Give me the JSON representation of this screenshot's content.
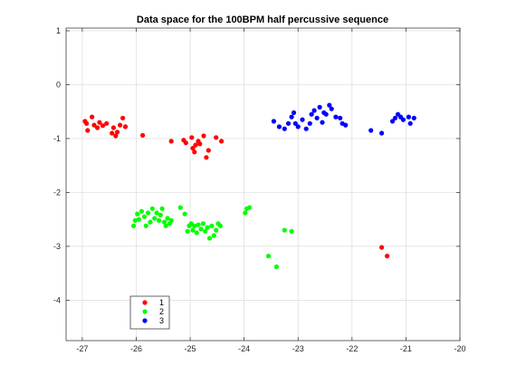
{
  "chart_data": {
    "type": "scatter",
    "title": "Data space for the 100BPM half percussive sequence",
    "xlabel": "",
    "ylabel": "",
    "xlim": [
      -27.3,
      -20
    ],
    "ylim": [
      -4.75,
      1.05
    ],
    "x_ticks": [
      -27,
      -26,
      -25,
      -24,
      -23,
      -22,
      -21,
      -20
    ],
    "y_ticks": [
      1,
      0,
      -1,
      -2,
      -3,
      -4
    ],
    "x_tick_labels": [
      "-27",
      "-26",
      "-25",
      "-24",
      "-23",
      "-22",
      "-21",
      "-20"
    ],
    "y_tick_labels": [
      "1",
      "0",
      "-1",
      "-2",
      "-3",
      "-4"
    ],
    "grid": true,
    "legend_position": "lower-left",
    "series": [
      {
        "name": "1",
        "color": "#ff0000",
        "points": [
          [
            -26.95,
            -0.68
          ],
          [
            -26.92,
            -0.72
          ],
          [
            -26.9,
            -0.85
          ],
          [
            -26.82,
            -0.6
          ],
          [
            -26.78,
            -0.75
          ],
          [
            -26.72,
            -0.8
          ],
          [
            -26.68,
            -0.7
          ],
          [
            -26.62,
            -0.76
          ],
          [
            -26.55,
            -0.72
          ],
          [
            -26.45,
            -0.9
          ],
          [
            -26.42,
            -0.8
          ],
          [
            -26.38,
            -0.95
          ],
          [
            -26.35,
            -0.88
          ],
          [
            -26.3,
            -0.75
          ],
          [
            -26.25,
            -0.62
          ],
          [
            -26.2,
            -0.78
          ],
          [
            -25.88,
            -0.94
          ],
          [
            -25.35,
            -1.05
          ],
          [
            -25.12,
            -1.03
          ],
          [
            -25.08,
            -1.08
          ],
          [
            -24.97,
            -0.98
          ],
          [
            -24.95,
            -1.18
          ],
          [
            -24.92,
            -1.25
          ],
          [
            -24.9,
            -1.12
          ],
          [
            -24.85,
            -1.05
          ],
          [
            -24.82,
            -1.1
          ],
          [
            -24.75,
            -0.95
          ],
          [
            -24.7,
            -1.35
          ],
          [
            -24.66,
            -1.22
          ],
          [
            -24.52,
            -0.98
          ],
          [
            -24.42,
            -1.05
          ],
          [
            -21.45,
            -3.02
          ],
          [
            -21.35,
            -3.18
          ]
        ]
      },
      {
        "name": "2",
        "color": "#00ff00",
        "points": [
          [
            -26.05,
            -2.62
          ],
          [
            -26.02,
            -2.52
          ],
          [
            -25.98,
            -2.4
          ],
          [
            -25.95,
            -2.5
          ],
          [
            -25.9,
            -2.35
          ],
          [
            -25.85,
            -2.45
          ],
          [
            -25.82,
            -2.62
          ],
          [
            -25.78,
            -2.38
          ],
          [
            -25.74,
            -2.55
          ],
          [
            -25.7,
            -2.3
          ],
          [
            -25.66,
            -2.48
          ],
          [
            -25.62,
            -2.38
          ],
          [
            -25.58,
            -2.52
          ],
          [
            -25.55,
            -2.42
          ],
          [
            -25.52,
            -2.3
          ],
          [
            -25.48,
            -2.55
          ],
          [
            -25.45,
            -2.62
          ],
          [
            -25.42,
            -2.48
          ],
          [
            -25.38,
            -2.58
          ],
          [
            -25.35,
            -2.52
          ],
          [
            -25.18,
            -2.28
          ],
          [
            -25.1,
            -2.4
          ],
          [
            -25.05,
            -2.72
          ],
          [
            -25.02,
            -2.62
          ],
          [
            -24.98,
            -2.58
          ],
          [
            -24.95,
            -2.7
          ],
          [
            -24.92,
            -2.62
          ],
          [
            -24.88,
            -2.75
          ],
          [
            -24.85,
            -2.6
          ],
          [
            -24.8,
            -2.68
          ],
          [
            -24.76,
            -2.58
          ],
          [
            -24.72,
            -2.72
          ],
          [
            -24.68,
            -2.65
          ],
          [
            -24.64,
            -2.85
          ],
          [
            -24.6,
            -2.62
          ],
          [
            -24.56,
            -2.8
          ],
          [
            -24.52,
            -2.7
          ],
          [
            -24.48,
            -2.58
          ],
          [
            -24.44,
            -2.62
          ],
          [
            -23.98,
            -2.38
          ],
          [
            -23.95,
            -2.3
          ],
          [
            -23.9,
            -2.28
          ],
          [
            -23.25,
            -2.7
          ],
          [
            -23.12,
            -2.72
          ],
          [
            -23.55,
            -3.18
          ],
          [
            -23.4,
            -3.38
          ]
        ]
      },
      {
        "name": "3",
        "color": "#0000ff",
        "points": [
          [
            -23.45,
            -0.68
          ],
          [
            -23.35,
            -0.78
          ],
          [
            -23.25,
            -0.82
          ],
          [
            -23.18,
            -0.72
          ],
          [
            -23.12,
            -0.6
          ],
          [
            -23.08,
            -0.52
          ],
          [
            -23.05,
            -0.72
          ],
          [
            -23.0,
            -0.78
          ],
          [
            -22.92,
            -0.65
          ],
          [
            -22.85,
            -0.82
          ],
          [
            -22.78,
            -0.72
          ],
          [
            -22.75,
            -0.55
          ],
          [
            -22.7,
            -0.48
          ],
          [
            -22.65,
            -0.62
          ],
          [
            -22.6,
            -0.42
          ],
          [
            -22.55,
            -0.7
          ],
          [
            -22.52,
            -0.52
          ],
          [
            -22.48,
            -0.55
          ],
          [
            -22.42,
            -0.38
          ],
          [
            -22.38,
            -0.45
          ],
          [
            -22.3,
            -0.6
          ],
          [
            -22.22,
            -0.62
          ],
          [
            -22.18,
            -0.72
          ],
          [
            -22.12,
            -0.75
          ],
          [
            -21.65,
            -0.85
          ],
          [
            -21.45,
            -0.9
          ],
          [
            -21.25,
            -0.68
          ],
          [
            -21.2,
            -0.62
          ],
          [
            -21.15,
            -0.55
          ],
          [
            -21.1,
            -0.6
          ],
          [
            -21.05,
            -0.65
          ],
          [
            -20.95,
            -0.6
          ],
          [
            -20.92,
            -0.72
          ],
          [
            -20.85,
            -0.62
          ]
        ]
      }
    ]
  }
}
